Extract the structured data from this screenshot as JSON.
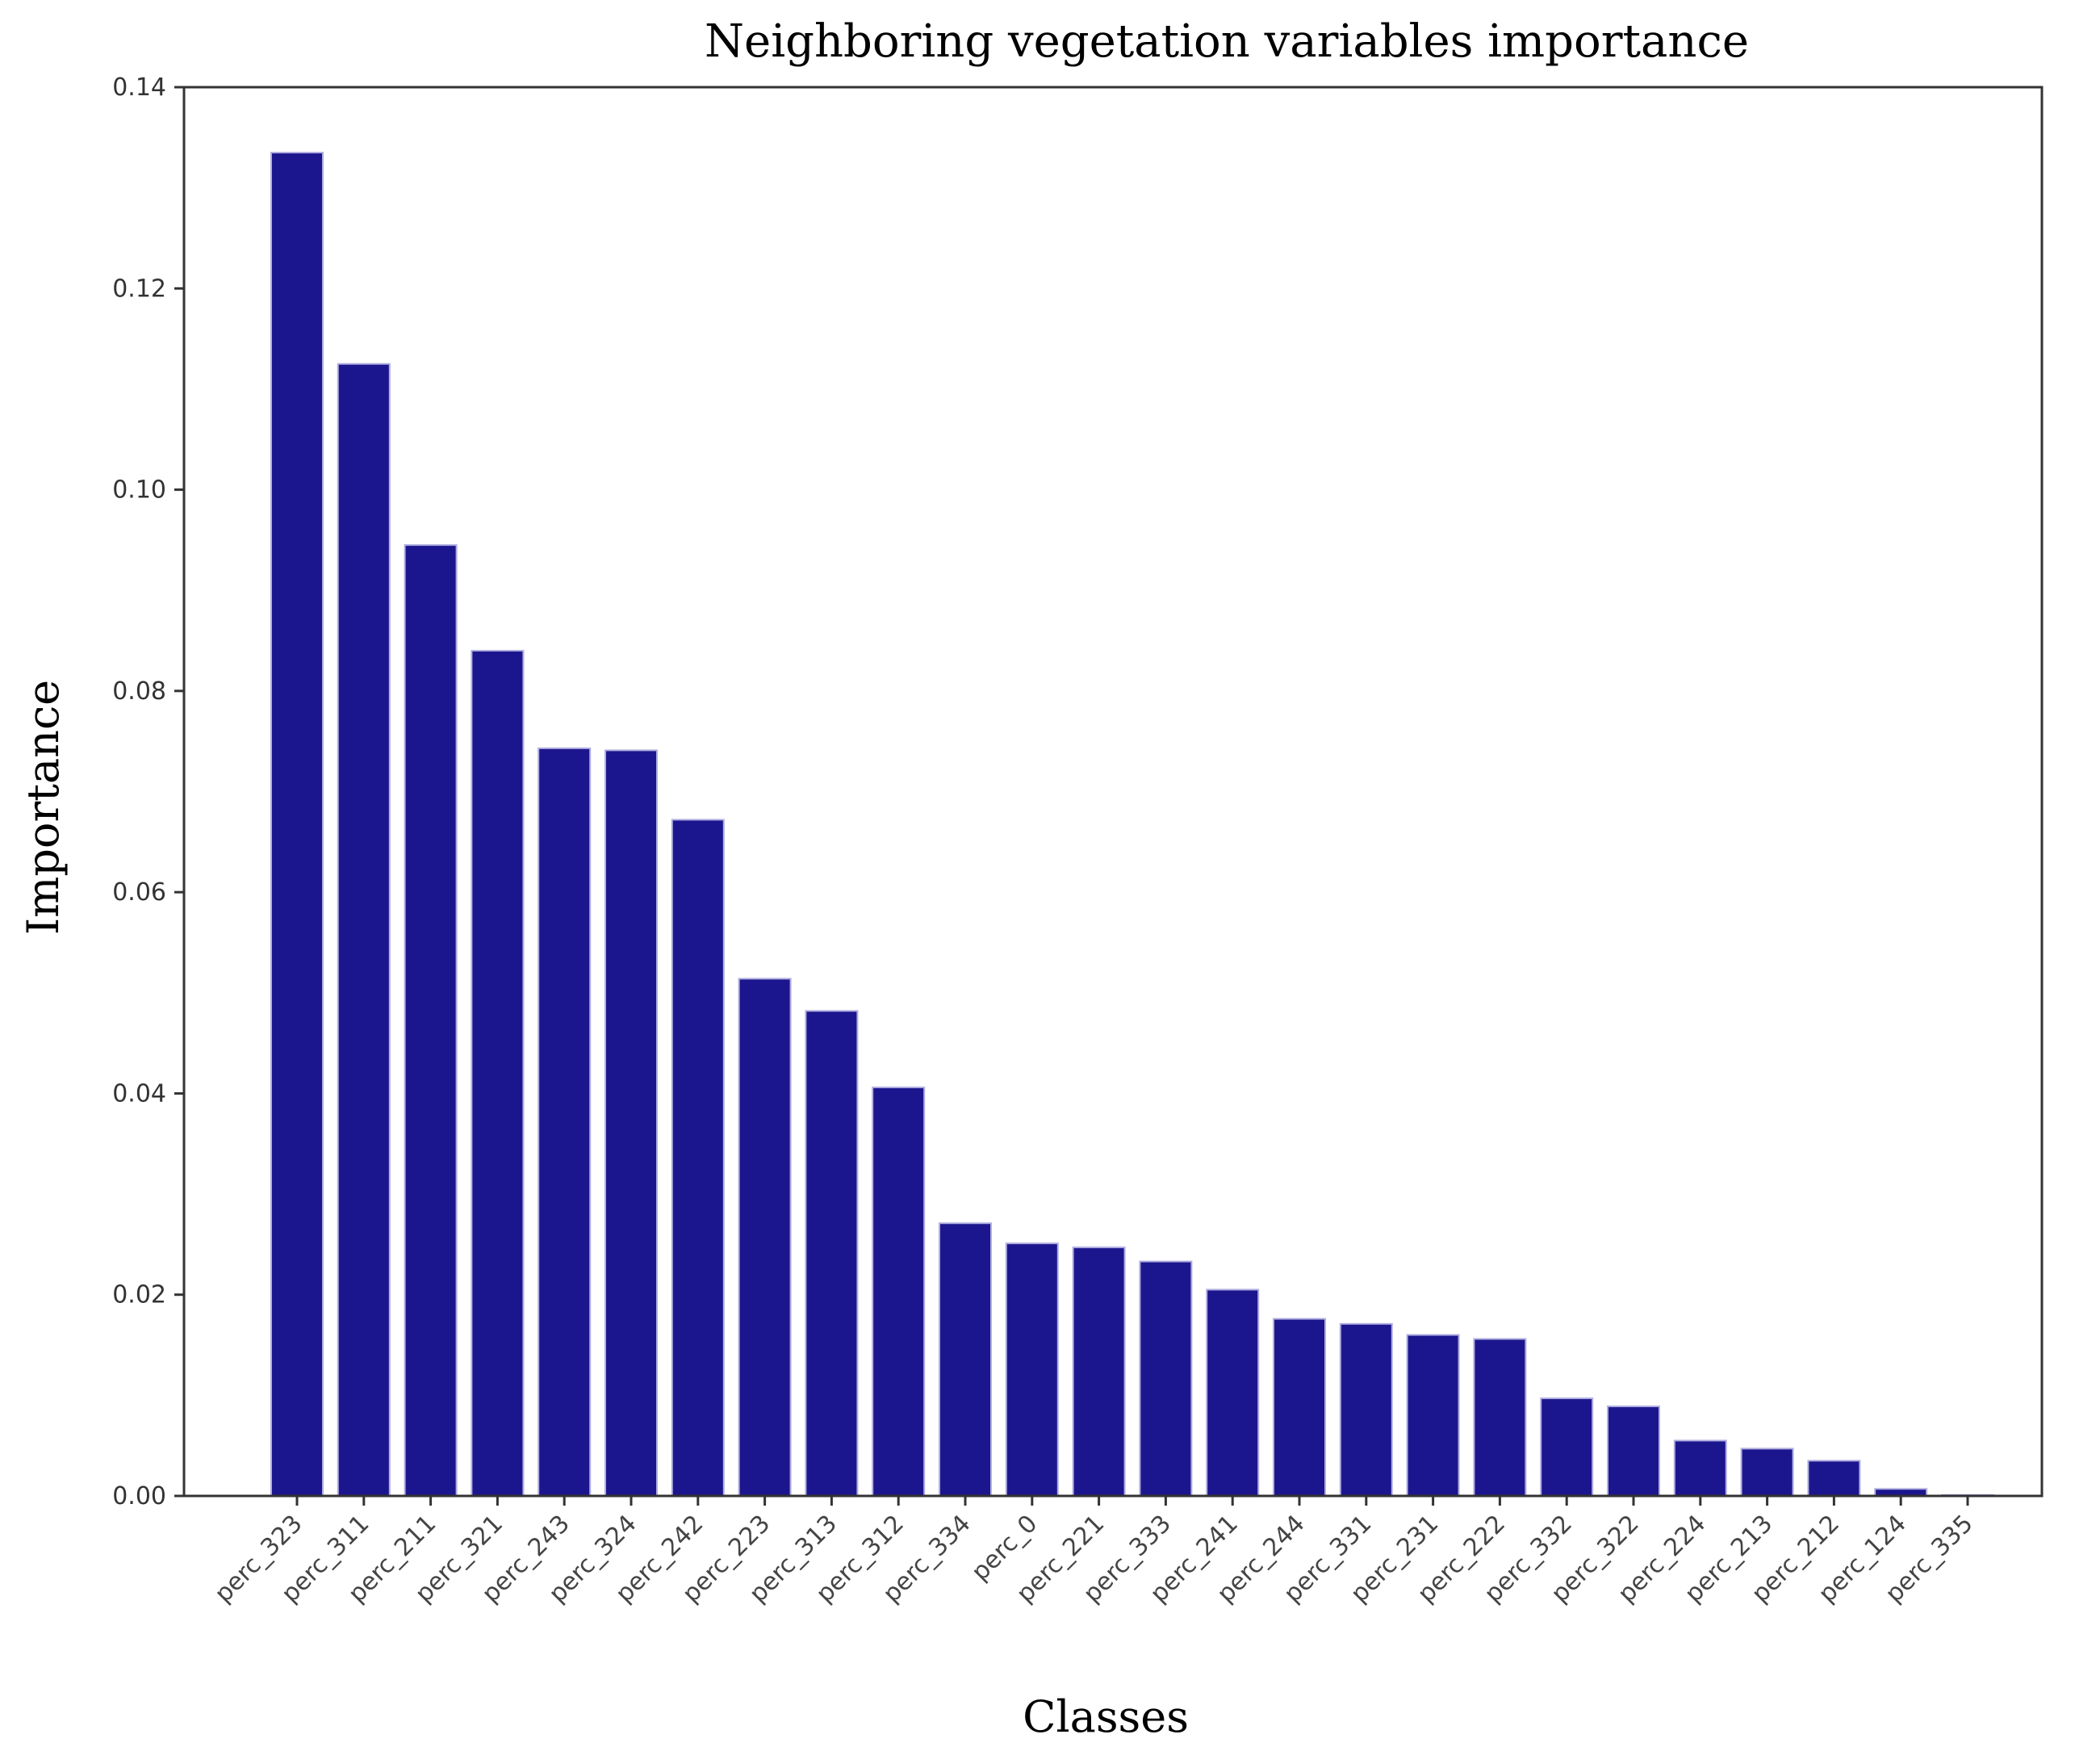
{
  "chart_data": {
    "type": "bar",
    "title": "Neighboring vegetation variables importance",
    "xlabel": "Classes",
    "ylabel": "Importance",
    "ylim": [
      0,
      0.14
    ],
    "yticks": [
      "0.00",
      "0.02",
      "0.04",
      "0.06",
      "0.08",
      "0.10",
      "0.12",
      "0.14"
    ],
    "bar_color": "#1c168e",
    "bar_edge_color": "#b0aee0",
    "grid": false,
    "categories": [
      "perc_323",
      "perc_311",
      "perc_211",
      "perc_321",
      "perc_243",
      "perc_324",
      "perc_242",
      "perc_223",
      "perc_313",
      "perc_312",
      "perc_334",
      "perc_0",
      "perc_221",
      "perc_333",
      "perc_241",
      "perc_244",
      "perc_331",
      "perc_231",
      "perc_222",
      "perc_332",
      "perc_322",
      "perc_224",
      "perc_213",
      "perc_212",
      "perc_124",
      "perc_335"
    ],
    "values": [
      0.1335,
      0.1125,
      0.0945,
      0.084,
      0.0743,
      0.0741,
      0.0672,
      0.0514,
      0.0482,
      0.0406,
      0.0271,
      0.0251,
      0.0247,
      0.0233,
      0.0205,
      0.0176,
      0.0171,
      0.016,
      0.0156,
      0.0097,
      0.0089,
      0.0055,
      0.0047,
      0.0035,
      0.0007,
      0.0001
    ]
  }
}
